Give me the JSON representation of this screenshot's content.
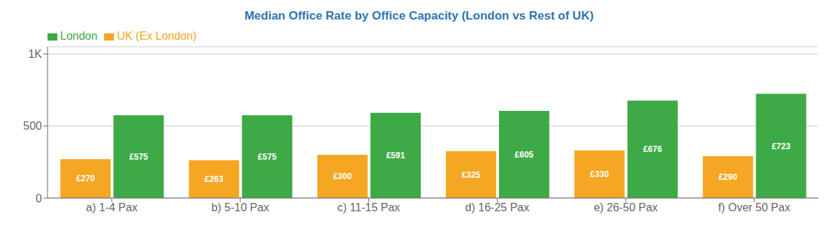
{
  "chart_data": {
    "type": "bar",
    "title": "Median Office Rate by Office Capacity (London vs Rest of UK)",
    "categories": [
      "a) 1-4 Pax",
      "b) 5-10 Pax",
      "c) 11-15 Pax",
      "d) 16-25 Pax",
      "e) 26-50 Pax",
      "f) Over 50 Pax"
    ],
    "series": [
      {
        "name": "UK (Ex London)",
        "color": "#F5A623",
        "values": [
          270,
          263,
          300,
          325,
          330,
          290
        ],
        "value_labels": [
          "£270",
          "£263",
          "£300",
          "£325",
          "£330",
          "£290"
        ]
      },
      {
        "name": "London",
        "color": "#3DAA45",
        "values": [
          575,
          575,
          591,
          605,
          676,
          723
        ],
        "value_labels": [
          "£575",
          "£575",
          "£591",
          "£605",
          "£676",
          "£723"
        ]
      }
    ],
    "ylim": [
      0,
      1050
    ],
    "yticks": [
      0,
      500,
      {
        "value": 1000,
        "label": "1K"
      }
    ],
    "grid": true,
    "legend": "upper left",
    "data_labels": true
  }
}
